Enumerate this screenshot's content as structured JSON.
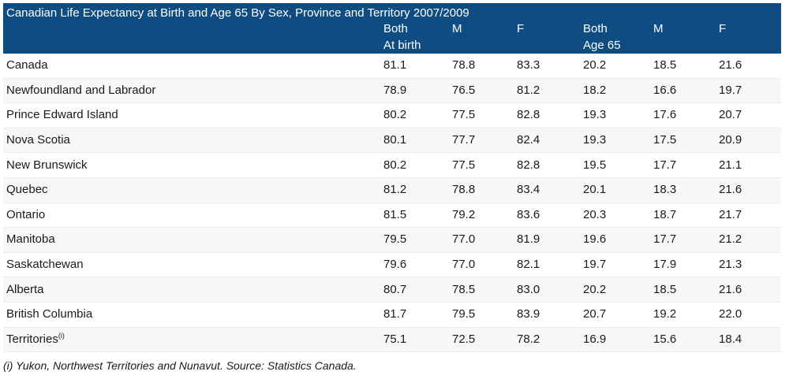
{
  "table": {
    "title": "Canadian Life Expectancy at Birth and Age 65 By Sex, Province and Territory 2007/2009",
    "headers": [
      {
        "label": "Both",
        "sub": "At birth"
      },
      {
        "label": "M",
        "sub": ""
      },
      {
        "label": "F",
        "sub": ""
      },
      {
        "label": "Both",
        "sub": "Age 65"
      },
      {
        "label": "M",
        "sub": ""
      },
      {
        "label": "F",
        "sub": ""
      }
    ],
    "rows": [
      {
        "name": "Canada",
        "sup": "",
        "values": [
          "81.1",
          "78.8",
          "83.3",
          "20.2",
          "18.5",
          "21.6"
        ]
      },
      {
        "name": "Newfoundland and Labrador",
        "sup": "",
        "values": [
          "78.9",
          "76.5",
          "81.2",
          "18.2",
          "16.6",
          "19.7"
        ]
      },
      {
        "name": "Prince Edward Island",
        "sup": "",
        "values": [
          "80.2",
          "77.5",
          "82.8",
          "19.3",
          "17.6",
          "20.7"
        ]
      },
      {
        "name": "Nova Scotia",
        "sup": "",
        "values": [
          "80.1",
          "77.7",
          "82.4",
          "19.3",
          "17.5",
          "20.9"
        ]
      },
      {
        "name": "New Brunswick",
        "sup": "",
        "values": [
          "80.2",
          "77.5",
          "82.8",
          "19.5",
          "17.7",
          "21.1"
        ]
      },
      {
        "name": "Quebec",
        "sup": "",
        "values": [
          "81.2",
          "78.8",
          "83.4",
          "20.1",
          "18.3",
          "21.6"
        ]
      },
      {
        "name": "Ontario",
        "sup": "",
        "values": [
          "81.5",
          "79.2",
          "83.6",
          "20.3",
          "18.7",
          "21.7"
        ]
      },
      {
        "name": "Manitoba",
        "sup": "",
        "values": [
          "79.5",
          "77.0",
          "81.9",
          "19.6",
          "17.7",
          "21.2"
        ]
      },
      {
        "name": "Saskatchewan",
        "sup": "",
        "values": [
          "79.6",
          "77.0",
          "82.1",
          "19.7",
          "17.9",
          "21.3"
        ]
      },
      {
        "name": "Alberta",
        "sup": "",
        "values": [
          "80.7",
          "78.5",
          "83.0",
          "20.2",
          "18.5",
          "21.6"
        ]
      },
      {
        "name": "British Columbia",
        "sup": "",
        "values": [
          "81.7",
          "79.5",
          "83.9",
          "20.7",
          "19.2",
          "22.0"
        ]
      },
      {
        "name": "Territories",
        "sup": "(i)",
        "values": [
          "75.1",
          "72.5",
          "78.2",
          "16.9",
          "15.6",
          "18.4"
        ]
      }
    ],
    "footnote": "(i) Yukon, Northwest Territories and Nunavut. Source: Statistics Canada."
  },
  "colors": {
    "header_bg": "#0f4c81",
    "header_text": "#ffffff",
    "stripe": "#f7f7f7"
  }
}
